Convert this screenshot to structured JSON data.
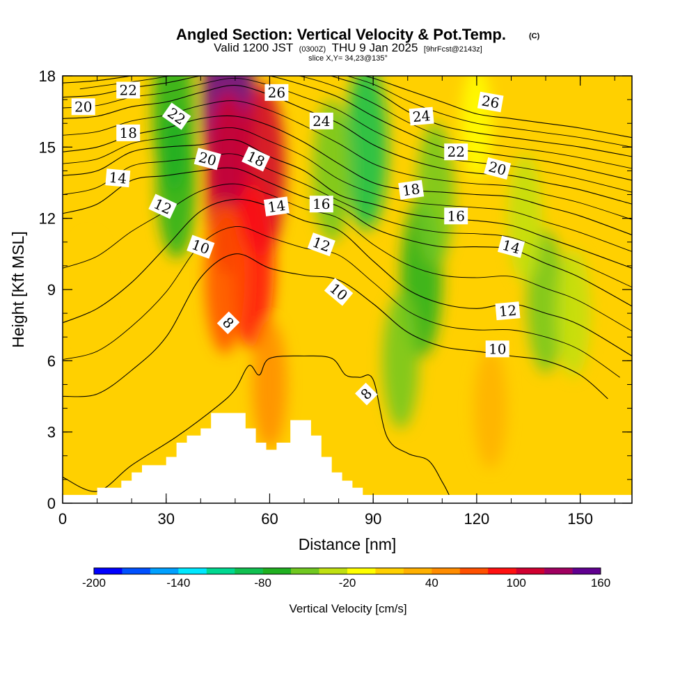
{
  "header": {
    "title": "Angled Section: Vertical Velocity & Pot.Temp.",
    "title_mark": "(C)",
    "valid_prefix": "Valid 1200 JST",
    "valid_utc": "(0300Z)",
    "valid_date": "THU 9 Jan 2025",
    "valid_fcst": "[9hrFcst@2143z]",
    "slice": "slice X,Y= 34,23@135°"
  },
  "chart_data": {
    "type": "heatmap",
    "xlabel": "Distance [nm]",
    "ylabel": "Height [Kft MSL]",
    "xlim": [
      0,
      165
    ],
    "ylim": [
      0,
      18
    ],
    "x_ticks": [
      0,
      30,
      60,
      90,
      120,
      150
    ],
    "y_ticks": [
      0,
      3,
      6,
      9,
      12,
      15,
      18
    ],
    "colorbar": {
      "label": "Vertical Velocity [cm/s]",
      "tick_labels": [
        "-200",
        "-140",
        "-80",
        "-20",
        "40",
        "100",
        "160"
      ],
      "tick_values": [
        -200,
        -140,
        -80,
        -20,
        40,
        100,
        160
      ],
      "step": 20,
      "colors": [
        "#0000ff",
        "#0050ff",
        "#00a0ff",
        "#00e8ff",
        "#00d890",
        "#10c050",
        "#20b020",
        "#70c820",
        "#c0e010",
        "#ffff00",
        "#ffd000",
        "#ffb000",
        "#ff8c00",
        "#ff5000",
        "#ff1010",
        "#d00030",
        "#a00060",
        "#600090"
      ]
    },
    "velocity_field": {
      "background": 0,
      "features": [
        {
          "x": 33,
          "y": 13.5,
          "value": -70
        },
        {
          "x": 32,
          "y": 16.5,
          "value": -80
        },
        {
          "x": 48,
          "y": 16.8,
          "value": 150
        },
        {
          "x": 48,
          "y": 13.5,
          "value": 110
        },
        {
          "x": 58,
          "y": 14,
          "value": 100
        },
        {
          "x": 55,
          "y": 10,
          "value": 90
        },
        {
          "x": 47,
          "y": 9.5,
          "value": 70
        },
        {
          "x": 60,
          "y": 5,
          "value": 40
        },
        {
          "x": 88,
          "y": 15,
          "value": -90
        },
        {
          "x": 78,
          "y": 14,
          "value": -60
        },
        {
          "x": 104,
          "y": 9.5,
          "value": -80
        },
        {
          "x": 108,
          "y": 13,
          "value": -60
        },
        {
          "x": 98,
          "y": 6,
          "value": -50
        },
        {
          "x": 140,
          "y": 8.5,
          "value": -60
        },
        {
          "x": 148,
          "y": 8,
          "value": -40
        },
        {
          "x": 124,
          "y": 4,
          "value": 30
        },
        {
          "x": 134,
          "y": 12,
          "value": -40
        },
        {
          "x": 8,
          "y": 9,
          "value": 10
        },
        {
          "x": 120,
          "y": 16,
          "value": -20
        }
      ]
    },
    "terrain_profile": [
      [
        0,
        0.35
      ],
      [
        10,
        0.35
      ],
      [
        10,
        0.65
      ],
      [
        17,
        0.65
      ],
      [
        17,
        0.95
      ],
      [
        20,
        0.95
      ],
      [
        20,
        1.3
      ],
      [
        23,
        1.3
      ],
      [
        23,
        1.6
      ],
      [
        30,
        1.6
      ],
      [
        30,
        1.95
      ],
      [
        33,
        1.95
      ],
      [
        33,
        2.55
      ],
      [
        36,
        2.55
      ],
      [
        36,
        2.85
      ],
      [
        40,
        2.85
      ],
      [
        40,
        3.15
      ],
      [
        43,
        3.15
      ],
      [
        43,
        3.8
      ],
      [
        53,
        3.8
      ],
      [
        53,
        3.15
      ],
      [
        56,
        3.15
      ],
      [
        56,
        2.55
      ],
      [
        59,
        2.55
      ],
      [
        59,
        2.25
      ],
      [
        62,
        2.25
      ],
      [
        62,
        2.55
      ],
      [
        66,
        2.55
      ],
      [
        66,
        3.5
      ],
      [
        72,
        3.5
      ],
      [
        72,
        2.85
      ],
      [
        75,
        2.85
      ],
      [
        75,
        1.95
      ],
      [
        78,
        1.95
      ],
      [
        78,
        1.3
      ],
      [
        81,
        1.3
      ],
      [
        81,
        0.95
      ],
      [
        84,
        0.95
      ],
      [
        84,
        0.65
      ],
      [
        87,
        0.65
      ],
      [
        87,
        0.35
      ],
      [
        165,
        0.35
      ]
    ],
    "theta_contours": [
      {
        "value": 8,
        "points": [
          [
            0,
            1.1
          ],
          [
            10,
            0.5
          ],
          [
            20,
            1.6
          ],
          [
            33,
            2.8
          ],
          [
            45,
            4.1
          ],
          [
            50,
            4.8
          ],
          [
            54,
            5.8
          ],
          [
            57,
            5.4
          ],
          [
            60,
            6.1
          ],
          [
            70,
            6.2
          ],
          [
            78,
            6.1
          ],
          [
            82,
            5.4
          ],
          [
            86,
            5.3
          ],
          [
            90,
            5.2
          ],
          [
            94,
            2.8
          ],
          [
            100,
            2.1
          ],
          [
            106,
            1.8
          ],
          [
            110,
            0.9
          ],
          [
            112,
            0.35
          ]
        ]
      },
      {
        "value": 10,
        "points": [
          [
            0,
            4.5
          ],
          [
            10,
            4.6
          ],
          [
            20,
            5.6
          ],
          [
            30,
            7.0
          ],
          [
            40,
            9.5
          ],
          [
            50,
            10.5
          ],
          [
            60,
            9.9
          ],
          [
            70,
            9.6
          ],
          [
            80,
            9.4
          ],
          [
            90,
            8.4
          ],
          [
            100,
            7.2
          ],
          [
            110,
            6.6
          ],
          [
            120,
            6.4
          ],
          [
            130,
            6.2
          ],
          [
            140,
            6.0
          ],
          [
            150,
            5.4
          ],
          [
            158,
            4.4
          ]
        ]
      },
      {
        "value": 12,
        "points": [
          [
            0,
            7.6
          ],
          [
            10,
            8.2
          ],
          [
            20,
            9.3
          ],
          [
            30,
            10.8
          ],
          [
            40,
            12.3
          ],
          [
            50,
            12.8
          ],
          [
            60,
            12.5
          ],
          [
            70,
            11.9
          ],
          [
            80,
            11.5
          ],
          [
            90,
            10.2
          ],
          [
            100,
            9.0
          ],
          [
            110,
            8.4
          ],
          [
            120,
            8.2
          ],
          [
            130,
            8.4
          ],
          [
            140,
            8.0
          ],
          [
            150,
            7.5
          ],
          [
            165,
            6.2
          ]
        ]
      },
      {
        "value": 14,
        "points": [
          [
            0,
            12.2
          ],
          [
            10,
            12.6
          ],
          [
            20,
            13.6
          ],
          [
            30,
            13.8
          ],
          [
            40,
            14.0
          ],
          [
            50,
            14.1
          ],
          [
            60,
            13.5
          ],
          [
            70,
            12.9
          ],
          [
            80,
            12.5
          ],
          [
            90,
            11.6
          ],
          [
            100,
            11.1
          ],
          [
            110,
            10.8
          ],
          [
            120,
            10.8
          ],
          [
            130,
            10.7
          ],
          [
            140,
            10.1
          ],
          [
            150,
            9.5
          ],
          [
            165,
            8.3
          ]
        ]
      },
      {
        "value": 16,
        "points": [
          [
            0,
            13.8
          ],
          [
            10,
            14.0
          ],
          [
            20,
            14.8
          ],
          [
            30,
            15.0
          ],
          [
            40,
            15.1
          ],
          [
            50,
            15.3
          ],
          [
            60,
            14.6
          ],
          [
            70,
            14.0
          ],
          [
            80,
            13.0
          ],
          [
            90,
            12.6
          ],
          [
            100,
            12.2
          ],
          [
            110,
            12.0
          ],
          [
            120,
            11.9
          ],
          [
            130,
            11.7
          ],
          [
            140,
            11.2
          ],
          [
            150,
            10.7
          ],
          [
            165,
            9.9
          ]
        ]
      },
      {
        "value": 18,
        "points": [
          [
            0,
            14.8
          ],
          [
            10,
            15.0
          ],
          [
            20,
            15.5
          ],
          [
            30,
            15.8
          ],
          [
            40,
            16.2
          ],
          [
            50,
            16.3
          ],
          [
            60,
            15.9
          ],
          [
            70,
            15.2
          ],
          [
            80,
            14.3
          ],
          [
            90,
            13.5
          ],
          [
            100,
            13.2
          ],
          [
            110,
            13.1
          ],
          [
            120,
            13.0
          ],
          [
            130,
            12.9
          ],
          [
            140,
            12.5
          ],
          [
            150,
            12.1
          ],
          [
            165,
            11.3
          ]
        ]
      },
      {
        "value": 20,
        "points": [
          [
            0,
            16.2
          ],
          [
            10,
            16.3
          ],
          [
            20,
            16.7
          ],
          [
            30,
            16.9
          ],
          [
            40,
            17.3
          ],
          [
            50,
            17.6
          ],
          [
            60,
            17.2
          ],
          [
            70,
            16.6
          ],
          [
            80,
            16.0
          ],
          [
            90,
            15.1
          ],
          [
            100,
            14.5
          ],
          [
            110,
            14.1
          ],
          [
            120,
            13.9
          ],
          [
            130,
            13.8
          ],
          [
            140,
            13.5
          ],
          [
            150,
            13.2
          ],
          [
            165,
            12.6
          ]
        ]
      },
      {
        "value": 22,
        "points": [
          [
            0,
            17.1
          ],
          [
            10,
            17.2
          ],
          [
            20,
            17.5
          ],
          [
            30,
            17.7
          ],
          [
            40,
            18.0
          ],
          [
            50,
            18.2
          ],
          [
            60,
            18.0
          ],
          [
            70,
            17.6
          ],
          [
            80,
            17.1
          ],
          [
            90,
            16.3
          ],
          [
            100,
            15.6
          ],
          [
            110,
            15.0
          ],
          [
            120,
            14.8
          ],
          [
            130,
            14.6
          ],
          [
            140,
            14.4
          ],
          [
            150,
            14.1
          ],
          [
            165,
            13.6
          ]
        ]
      },
      {
        "value": 24,
        "points": [
          [
            0,
            17.7
          ],
          [
            10,
            17.8
          ],
          [
            20,
            18.0
          ],
          [
            30,
            18.2
          ],
          [
            40,
            18.5
          ],
          [
            60,
            18.4
          ],
          [
            70,
            18.3
          ],
          [
            80,
            17.9
          ],
          [
            90,
            17.4
          ],
          [
            100,
            16.5
          ],
          [
            110,
            15.9
          ],
          [
            120,
            15.6
          ],
          [
            130,
            15.4
          ],
          [
            140,
            15.2
          ],
          [
            150,
            15.0
          ],
          [
            165,
            14.6
          ]
        ]
      },
      {
        "value": 26,
        "points": [
          [
            80,
            18.3
          ],
          [
            90,
            17.9
          ],
          [
            100,
            17.4
          ],
          [
            110,
            16.9
          ],
          [
            120,
            16.4
          ],
          [
            130,
            16.2
          ],
          [
            140,
            16.0
          ],
          [
            150,
            15.8
          ],
          [
            165,
            15.4
          ]
        ]
      }
    ],
    "contour_labels": [
      {
        "text": "20",
        "x": 6,
        "y": 16.7,
        "angle": 0
      },
      {
        "text": "22",
        "x": 19,
        "y": 17.4,
        "angle": 0
      },
      {
        "text": "22",
        "x": 33,
        "y": 16.3,
        "angle": 35
      },
      {
        "text": "18",
        "x": 19,
        "y": 15.6,
        "angle": 0
      },
      {
        "text": "14",
        "x": 16,
        "y": 13.7,
        "angle": 5
      },
      {
        "text": "20",
        "x": 42,
        "y": 14.5,
        "angle": 15
      },
      {
        "text": "18",
        "x": 56,
        "y": 14.5,
        "angle": 25
      },
      {
        "text": "26",
        "x": 62,
        "y": 17.3,
        "angle": 0
      },
      {
        "text": "24",
        "x": 75,
        "y": 16.1,
        "angle": 0
      },
      {
        "text": "12",
        "x": 29,
        "y": 12.5,
        "angle": 25
      },
      {
        "text": "14",
        "x": 62,
        "y": 12.5,
        "angle": -8
      },
      {
        "text": "16",
        "x": 75,
        "y": 12.6,
        "angle": 0
      },
      {
        "text": "10",
        "x": 40,
        "y": 10.8,
        "angle": 20
      },
      {
        "text": "12",
        "x": 75,
        "y": 10.9,
        "angle": 20
      },
      {
        "text": "8",
        "x": 48,
        "y": 7.6,
        "angle": 45
      },
      {
        "text": "10",
        "x": 80,
        "y": 8.9,
        "angle": 40
      },
      {
        "text": "24",
        "x": 104,
        "y": 16.3,
        "angle": -5
      },
      {
        "text": "26",
        "x": 124,
        "y": 16.9,
        "angle": 10
      },
      {
        "text": "22",
        "x": 114,
        "y": 14.8,
        "angle": 0
      },
      {
        "text": "20",
        "x": 126,
        "y": 14.1,
        "angle": 15
      },
      {
        "text": "18",
        "x": 101,
        "y": 13.2,
        "angle": -8
      },
      {
        "text": "16",
        "x": 114,
        "y": 12.1,
        "angle": 0
      },
      {
        "text": "14",
        "x": 130,
        "y": 10.8,
        "angle": 15
      },
      {
        "text": "12",
        "x": 129,
        "y": 8.1,
        "angle": -5
      },
      {
        "text": "10",
        "x": 126,
        "y": 6.5,
        "angle": 0
      },
      {
        "text": "8",
        "x": 88,
        "y": 4.6,
        "angle": -45
      }
    ]
  }
}
